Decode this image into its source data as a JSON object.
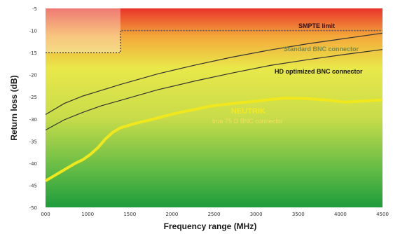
{
  "chart_data": {
    "type": "line",
    "xlabel": "Frequency range (MHz)",
    "ylabel": "Return loss (dB)",
    "xlim": [
      0,
      4500
    ],
    "ylim": [
      -50,
      -5
    ],
    "x_ticks": [
      "000",
      "1000",
      "1500",
      "2000",
      "2500",
      "3000",
      "3500",
      "4000",
      "4500"
    ],
    "y_ticks": [
      "-5",
      "-10",
      "-15",
      "-20",
      "-25",
      "-30",
      "-35",
      "-40",
      "-45",
      "-50"
    ],
    "background_gradient": [
      "#e8342b",
      "#f4a83a",
      "#e9e84a",
      "#c8dc4a",
      "#5fba45",
      "#1e9c3c"
    ],
    "limit": {
      "name": "SMPTE limit",
      "color": "#555555",
      "x": [
        0,
        1000,
        1000,
        4500
      ],
      "y": [
        -15,
        -15,
        -10,
        -10
      ]
    },
    "series": [
      {
        "name": "Standard BNC connector",
        "color": "#333333",
        "x": [
          0,
          250,
          500,
          750,
          1000,
          1500,
          2000,
          2500,
          3000,
          3500,
          4000,
          4500
        ],
        "y": [
          -29,
          -26.5,
          -24.8,
          -23.5,
          -22.2,
          -19.8,
          -17.8,
          -16.0,
          -14.4,
          -13.0,
          -11.8,
          -10.6
        ]
      },
      {
        "name": "HD optimized BNC connector",
        "color": "#333333",
        "x": [
          0,
          250,
          500,
          750,
          1000,
          1500,
          2000,
          2500,
          3000,
          3500,
          4000,
          4500
        ],
        "y": [
          -32.5,
          -30.2,
          -28.5,
          -27.0,
          -25.8,
          -23.4,
          -21.4,
          -19.6,
          -17.9,
          -16.6,
          -15.4,
          -14.3
        ]
      },
      {
        "name": "NEUTRIK true 75 Ω BNC connector",
        "color": "#f0e81c",
        "x": [
          0,
          100,
          200,
          300,
          400,
          500,
          600,
          700,
          800,
          900,
          1000,
          1200,
          1400,
          1600,
          1800,
          2000,
          2200,
          2500,
          2800,
          3000,
          3200,
          3500,
          3800,
          4000,
          4200,
          4500
        ],
        "y": [
          -44,
          -43,
          -42,
          -41,
          -40,
          -39.2,
          -38,
          -36.5,
          -34.5,
          -33,
          -32,
          -31,
          -30.2,
          -29.3,
          -28.5,
          -27.8,
          -27.1,
          -26.5,
          -26.0,
          -25.6,
          -25.3,
          -25.4,
          -25.8,
          -26.2,
          -26.0,
          -25.7
        ]
      }
    ],
    "annotations": {
      "limit_label": "SMPTE limit",
      "standard_label": "Standard BNC connector",
      "hd_label": "HD optimized BNC connector",
      "neutrik_brand": "NEUTRIK",
      "neutrik_label": "true 75 Ω BNC connector"
    },
    "grid": false
  }
}
